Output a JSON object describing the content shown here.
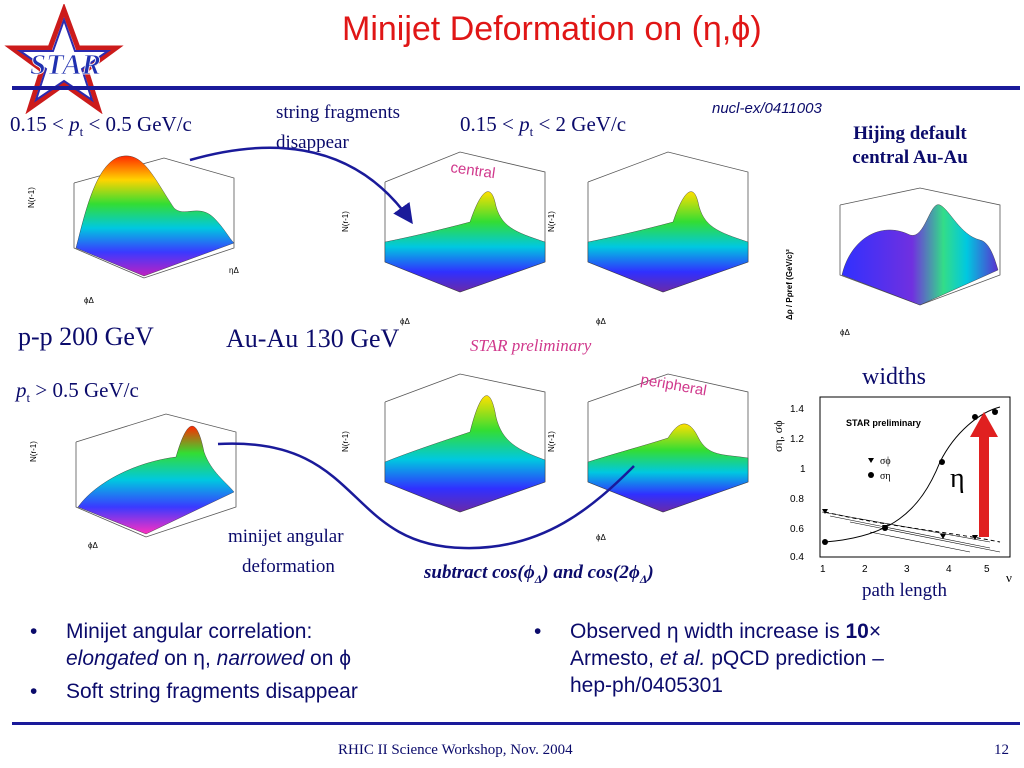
{
  "logo": {
    "text": "STAR"
  },
  "title": "Minijet Deformation on (η,ϕ)",
  "ref": "nucl-ex/0411003",
  "labels": {
    "pt_range_pp": "0.15 < pt < 0.5 GeV/c",
    "string_fragments": "string fragments",
    "disappear": "disappear",
    "pt_range_auau": "0.15 < pt < 2 GeV/c",
    "hijing_line1": "Hijing default",
    "hijing_line2": "central Au-Au",
    "pp_energy": "p-p 200 GeV",
    "auau_energy": "Au-Au 130 GeV",
    "star_preliminary": "STAR preliminary",
    "pt_gt": "pt > 0.5 GeV/c",
    "central": "central",
    "peripheral": "peripheral",
    "minijet_line1": "minijet angular",
    "minijet_line2": "deformation",
    "subtract": "subtract cos(ϕΔ) and cos(2ϕΔ)",
    "widths": "widths",
    "eta_symbol": "η",
    "path_length": "path length"
  },
  "axes": {
    "n_r_minus_1": "N(r-1)",
    "phi_delta": "ϕΔ",
    "eta_delta": "ηΔ",
    "hijing_ylabel": "Δρ / Pρref (GeV/c)²",
    "nu": "ν"
  },
  "widths_plot": {
    "title": "STAR preliminary",
    "ylabel": "ση, σϕ",
    "legend": [
      "σϕ",
      "ση"
    ],
    "yticks": [
      "0.4",
      "0.6",
      "0.8",
      "1",
      "1.2",
      "1.4"
    ],
    "xticks": [
      "1",
      "2",
      "3",
      "4",
      "5"
    ]
  },
  "bullets_left": [
    {
      "text": "Minijet angular correlation:"
    },
    {
      "text": "elongated on η, narrowed on ϕ",
      "indent": true
    },
    {
      "text": "Soft string fragments disappear"
    }
  ],
  "bullets_right": [
    {
      "text": "Observed η width increase is 10×"
    },
    {
      "text": "Armesto, et al. pQCD prediction –",
      "indent": true
    },
    {
      "text": "hep-ph/0405301",
      "indent": true
    }
  ],
  "footer": {
    "center": "RHIC II Science Workshop, Nov. 2004",
    "page": "12"
  },
  "colors": {
    "title": "#e01616",
    "rule": "#1a1a9a",
    "text": "#0b0b6b",
    "accent_pink": "#d0388c"
  }
}
